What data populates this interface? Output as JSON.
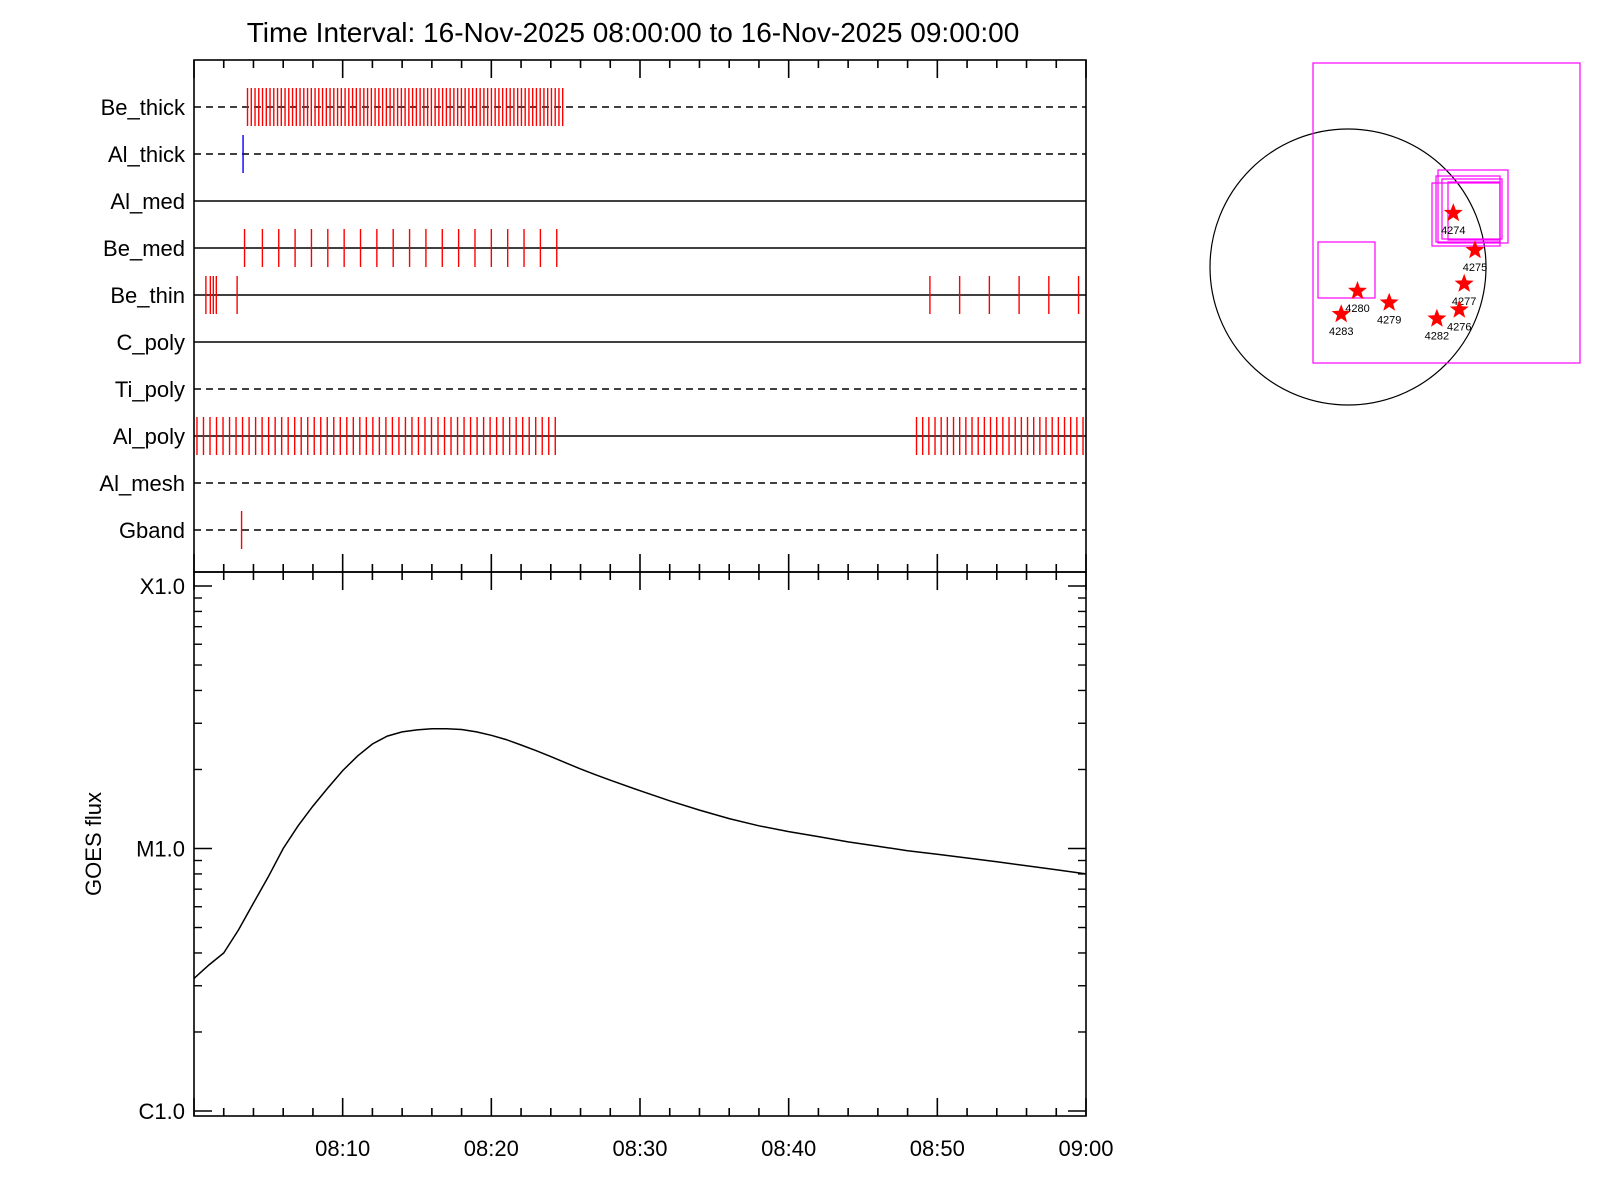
{
  "title": "Time Interval: 16-Nov-2025 08:00:00 to 16-Nov-2025 09:00:00",
  "colors": {
    "axis": "#000000",
    "red_tick": "#ff0000",
    "blue_tick": "#0000ff",
    "magenta": "#ff00ff",
    "curve": "#000000"
  },
  "chart_data": [
    {
      "type": "timeline",
      "x_range_minutes": [
        0,
        60
      ],
      "rows": [
        {
          "name": "Be_thick",
          "line": "dashed",
          "marks": [
            {
              "color": "red",
              "range": [
                3.6,
                24.8
              ],
              "count": 85
            }
          ]
        },
        {
          "name": "Al_thick",
          "line": "dashed",
          "marks": [
            {
              "color": "blue",
              "times": [
                3.3
              ]
            }
          ]
        },
        {
          "name": "Al_med",
          "line": "solid",
          "marks": []
        },
        {
          "name": "Be_med",
          "line": "solid",
          "marks": [
            {
              "color": "red",
              "times": [
                3.4,
                4.6,
                5.7,
                6.8,
                7.9,
                9.0,
                10.1,
                11.2,
                12.3,
                13.4,
                14.5,
                15.6,
                16.7,
                17.8,
                18.9,
                20.0,
                21.1,
                22.2,
                23.3,
                24.4
              ]
            }
          ]
        },
        {
          "name": "Be_thin",
          "line": "solid",
          "marks": [
            {
              "color": "red",
              "times": [
                0.8,
                1.1,
                1.3,
                1.5,
                2.9,
                49.5,
                51.5,
                53.5,
                55.5,
                57.5,
                59.5
              ]
            }
          ]
        },
        {
          "name": "C_poly",
          "line": "solid",
          "marks": []
        },
        {
          "name": "Ti_poly",
          "line": "dashed",
          "marks": []
        },
        {
          "name": "Al_poly",
          "line": "solid",
          "marks": [
            {
              "color": "red",
              "range": [
                0.2,
                24.3
              ],
              "count": 56
            },
            {
              "color": "red",
              "range": [
                48.6,
                59.8
              ],
              "count": 28
            }
          ]
        },
        {
          "name": "Al_mesh",
          "line": "dashed",
          "marks": []
        },
        {
          "name": "Gband",
          "line": "dashed",
          "marks": [
            {
              "color": "red",
              "times": [
                3.2
              ]
            }
          ]
        }
      ]
    },
    {
      "type": "line",
      "ylabel": "GOES flux",
      "yscale": "log",
      "ylim": [
        1e-06,
        0.0001
      ],
      "yticks": [
        {
          "label": "C1.0",
          "value": 1e-06
        },
        {
          "label": "M1.0",
          "value": 1e-05
        },
        {
          "label": "X1.0",
          "value": 0.0001
        }
      ],
      "x_ticks": [
        "08:10",
        "08:20",
        "08:30",
        "08:40",
        "08:50",
        "09:00"
      ],
      "x_tick_minutes": [
        10,
        20,
        30,
        40,
        50,
        60
      ],
      "x": [
        0,
        1,
        2,
        3,
        4,
        5,
        6,
        7,
        8,
        9,
        10,
        11,
        12,
        13,
        14,
        15,
        16,
        17,
        18,
        19,
        20,
        21,
        22,
        23,
        24,
        25,
        26,
        27,
        28,
        30,
        32,
        34,
        36,
        38,
        40,
        42,
        44,
        46,
        48,
        50,
        52,
        54,
        56,
        58,
        60
      ],
      "y": [
        3.2e-06,
        3.6e-06,
        4e-06,
        4.9e-06,
        6.2e-06,
        7.8e-06,
        1e-05,
        1.22e-05,
        1.45e-05,
        1.7e-05,
        1.98e-05,
        2.25e-05,
        2.5e-05,
        2.68e-05,
        2.78e-05,
        2.83e-05,
        2.86e-05,
        2.86e-05,
        2.84e-05,
        2.78e-05,
        2.7e-05,
        2.6e-05,
        2.48e-05,
        2.36e-05,
        2.24e-05,
        2.12e-05,
        2.01e-05,
        1.91e-05,
        1.82e-05,
        1.66e-05,
        1.52e-05,
        1.4e-05,
        1.3e-05,
        1.22e-05,
        1.16e-05,
        1.11e-05,
        1.06e-05,
        1.02e-05,
        9.8e-06,
        9.5e-06,
        9.2e-06,
        8.9e-06,
        8.6e-06,
        8.3e-06,
        8e-06
      ]
    }
  ],
  "sun_map": {
    "regions": [
      {
        "label": "4274",
        "lon": 56,
        "lat": 23
      },
      {
        "label": "4275",
        "lon": 68,
        "lat": 7
      },
      {
        "label": "4277",
        "lon": 58,
        "lat": -7
      },
      {
        "label": "4276",
        "lon": 58,
        "lat": -18
      },
      {
        "label": "4282",
        "lon": 44,
        "lat": -22
      },
      {
        "label": "4279",
        "lon": 18,
        "lat": -15
      },
      {
        "label": "4280",
        "lon": 4,
        "lat": -10
      },
      {
        "label": "4283",
        "lon": -3,
        "lat": -20
      }
    ]
  }
}
